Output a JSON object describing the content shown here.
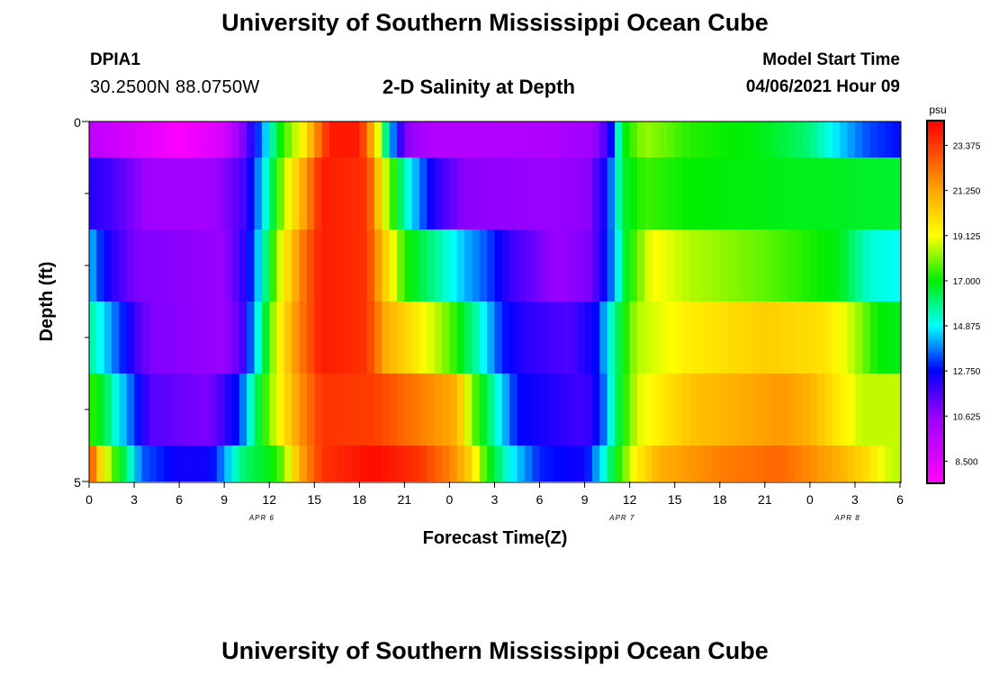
{
  "header": {
    "title": "University of Southern Mississippi Ocean Cube",
    "station": "DPIA1",
    "coordinates": "30.2500N  88.0750W",
    "subtitle": "2-D Salinity at Depth",
    "model_start_label": "Model Start Time",
    "model_start_value": "04/06/2021 Hour 09"
  },
  "footer": {
    "title": "University of Southern Mississippi Ocean Cube"
  },
  "chart_data": {
    "type": "heatmap",
    "title": "2-D Salinity at Depth",
    "xlabel": "Forecast Time(Z)",
    "ylabel": "Depth (ft)",
    "x_tick_labels": [
      "0",
      "3",
      "6",
      "9",
      "12",
      "15",
      "18",
      "21",
      "0",
      "3",
      "6",
      "9",
      "12",
      "15",
      "18",
      "21",
      "0",
      "3",
      "6"
    ],
    "x_date_labels": [
      {
        "label": "APR 6",
        "tick_index": 4
      },
      {
        "label": "APR 7",
        "tick_index": 12
      },
      {
        "label": "APR 8",
        "tick_index": 17
      }
    ],
    "y_tick_labels": [
      "0",
      "5"
    ],
    "ylim": [
      0,
      5
    ],
    "forecast_hours": 54,
    "depth_rows": [
      0,
      1,
      2,
      3,
      4,
      5
    ],
    "colorbar": {
      "unit": "psu",
      "min": 7.5,
      "max": 24.5,
      "tick_labels": [
        "23.375",
        "21.250",
        "19.125",
        "17.000",
        "14.875",
        "12.750",
        "10.625",
        "8.500"
      ],
      "tick_values": [
        23.375,
        21.25,
        19.125,
        17.0,
        14.875,
        12.75,
        10.625,
        8.5
      ],
      "stops": [
        {
          "value": 7.5,
          "color": "#ff00ff"
        },
        {
          "value": 10.6,
          "color": "#9b00ff"
        },
        {
          "value": 12.75,
          "color": "#0000ff"
        },
        {
          "value": 14.875,
          "color": "#00ffff"
        },
        {
          "value": 17.0,
          "color": "#00ee00"
        },
        {
          "value": 19.125,
          "color": "#ffff00"
        },
        {
          "value": 21.25,
          "color": "#ffa500"
        },
        {
          "value": 24.5,
          "color": "#ff0000"
        }
      ]
    },
    "rows": [
      {
        "depth": 0,
        "keys": [
          [
            0,
            9.6
          ],
          [
            2,
            9.0
          ],
          [
            6,
            7.6
          ],
          [
            9,
            8.8
          ],
          [
            10.5,
            11.4
          ],
          [
            11.5,
            13.8
          ],
          [
            12.7,
            17.0
          ],
          [
            14.3,
            19.5
          ],
          [
            15,
            21.5
          ],
          [
            16,
            24.0
          ],
          [
            18,
            24.0
          ],
          [
            19,
            20.5
          ],
          [
            19.9,
            15.0
          ],
          [
            21,
            11.0
          ],
          [
            23,
            9.8
          ],
          [
            31,
            10.0
          ],
          [
            33.5,
            10.4
          ],
          [
            34.6,
            12.0
          ],
          [
            35.5,
            16.8
          ],
          [
            37,
            18.3
          ],
          [
            40,
            17.3
          ],
          [
            45,
            16.8
          ],
          [
            48,
            16.0
          ],
          [
            50,
            14.5
          ],
          [
            52,
            13.3
          ],
          [
            54,
            12.8
          ]
        ]
      },
      {
        "depth": 1,
        "keys": [
          [
            0,
            12.3
          ],
          [
            1.5,
            11.8
          ],
          [
            4,
            10.4
          ],
          [
            8,
            10.3
          ],
          [
            10.4,
            11.8
          ],
          [
            11.5,
            14.5
          ],
          [
            12.8,
            18.0
          ],
          [
            14.4,
            21.5
          ],
          [
            15.5,
            24.0
          ],
          [
            18.5,
            23.5
          ],
          [
            19.8,
            18.5
          ],
          [
            21,
            15.5
          ],
          [
            23,
            12.2
          ],
          [
            25,
            10.8
          ],
          [
            31,
            10.6
          ],
          [
            33.3,
            10.8
          ],
          [
            34.5,
            12.8
          ],
          [
            35.5,
            16.5
          ],
          [
            37,
            17.5
          ],
          [
            40,
            17.0
          ],
          [
            54,
            16.6
          ]
        ]
      },
      {
        "depth": 2,
        "keys": [
          [
            0,
            14.5
          ],
          [
            1,
            12.7
          ],
          [
            3,
            11.0
          ],
          [
            9,
            10.6
          ],
          [
            10.6,
            12.5
          ],
          [
            11.6,
            15.5
          ],
          [
            12.8,
            19.0
          ],
          [
            14.4,
            22.5
          ],
          [
            15.5,
            24.0
          ],
          [
            18.5,
            23.5
          ],
          [
            19.8,
            20.0
          ],
          [
            21,
            17.3
          ],
          [
            23,
            15.8
          ],
          [
            25,
            14.3
          ],
          [
            26.5,
            13.4
          ],
          [
            28,
            12.0
          ],
          [
            31,
            10.6
          ],
          [
            33.4,
            11.0
          ],
          [
            34.6,
            13.2
          ],
          [
            35.8,
            16.8
          ],
          [
            37.5,
            19.2
          ],
          [
            40,
            18.5
          ],
          [
            45,
            17.8
          ],
          [
            50,
            16.8
          ],
          [
            52,
            15.2
          ],
          [
            54,
            14.9
          ]
        ]
      },
      {
        "depth": 3,
        "keys": [
          [
            0,
            15.8
          ],
          [
            1.5,
            14.0
          ],
          [
            3,
            12.0
          ],
          [
            4,
            11.0
          ],
          [
            9,
            10.6
          ],
          [
            10.2,
            11.6
          ],
          [
            11.2,
            15.0
          ],
          [
            12.5,
            19.0
          ],
          [
            14,
            22.0
          ],
          [
            15.5,
            24.0
          ],
          [
            18.5,
            23.5
          ],
          [
            19.8,
            21.0
          ],
          [
            22,
            19.5
          ],
          [
            24,
            17.8
          ],
          [
            26,
            15.3
          ],
          [
            27.5,
            13.0
          ],
          [
            29,
            12.2
          ],
          [
            32,
            11.6
          ],
          [
            33.8,
            12.8
          ],
          [
            35,
            16.0
          ],
          [
            36.5,
            18.5
          ],
          [
            40,
            19.5
          ],
          [
            45,
            20.3
          ],
          [
            49,
            19.8
          ],
          [
            51,
            18.5
          ],
          [
            52.5,
            17.0
          ],
          [
            54,
            16.8
          ]
        ]
      },
      {
        "depth": 4,
        "keys": [
          [
            0,
            17.5
          ],
          [
            1,
            16.5
          ],
          [
            2,
            14.8
          ],
          [
            3.5,
            12.5
          ],
          [
            4,
            11.6
          ],
          [
            8,
            11.0
          ],
          [
            9,
            12.0
          ],
          [
            10,
            13.0
          ],
          [
            11,
            16.0
          ],
          [
            12.5,
            19.0
          ],
          [
            14,
            21.5
          ],
          [
            15.5,
            23.5
          ],
          [
            19,
            23.3
          ],
          [
            24.5,
            21.0
          ],
          [
            25.5,
            18.0
          ],
          [
            27,
            15.5
          ],
          [
            28.5,
            12.8
          ],
          [
            33,
            11.8
          ],
          [
            34,
            12.8
          ],
          [
            35,
            16.0
          ],
          [
            36.5,
            18.8
          ],
          [
            40,
            20.5
          ],
          [
            43,
            21.0
          ],
          [
            46,
            21.5
          ],
          [
            48,
            21.0
          ],
          [
            50,
            19.5
          ],
          [
            51.5,
            18.6
          ],
          [
            54,
            18.6
          ]
        ]
      },
      {
        "depth": 5,
        "keys": [
          [
            0,
            23.5
          ],
          [
            0.6,
            20.5
          ],
          [
            1.5,
            18.0
          ],
          [
            2.5,
            16.0
          ],
          [
            3.5,
            13.5
          ],
          [
            6,
            12.5
          ],
          [
            8,
            12.5
          ],
          [
            9,
            14.0
          ],
          [
            10,
            15.8
          ],
          [
            11,
            16.5
          ],
          [
            12,
            16.8
          ],
          [
            13,
            18.0
          ],
          [
            14,
            21.0
          ],
          [
            15.5,
            23.5
          ],
          [
            19,
            24.3
          ],
          [
            22,
            23.5
          ],
          [
            24,
            22.0
          ],
          [
            25.2,
            20.5
          ],
          [
            26.5,
            17.2
          ],
          [
            28,
            15.0
          ],
          [
            30,
            13.0
          ],
          [
            33,
            12.5
          ],
          [
            34,
            14.5
          ],
          [
            35,
            16.8
          ],
          [
            36.5,
            19.5
          ],
          [
            38,
            21.0
          ],
          [
            42,
            22.0
          ],
          [
            46,
            22.5
          ],
          [
            50,
            21.0
          ],
          [
            52,
            19.8
          ],
          [
            53,
            18.8
          ],
          [
            54,
            18.5
          ]
        ]
      }
    ]
  }
}
